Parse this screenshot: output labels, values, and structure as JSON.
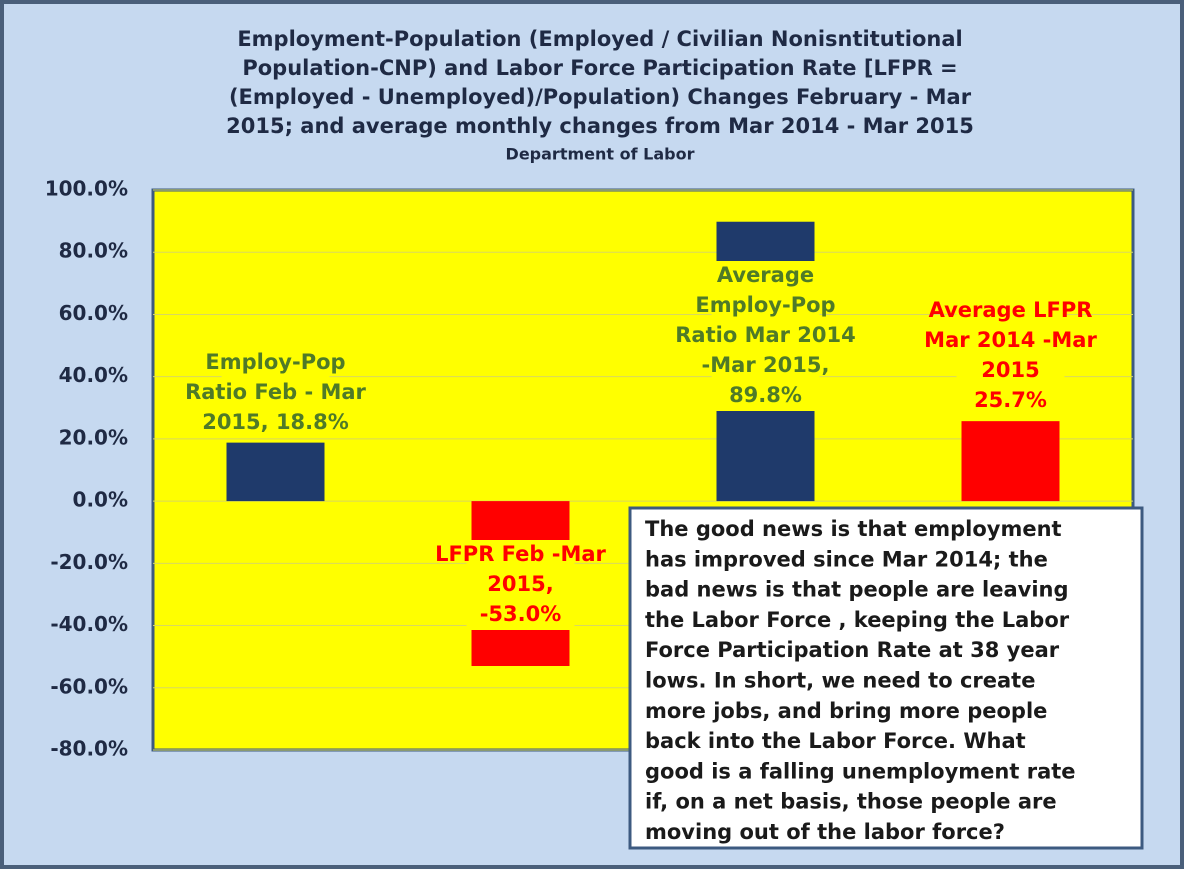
{
  "chart_data": {
    "type": "bar",
    "title": [
      "Employment-Population  (Employed / Civilian Nonisntitutional",
      "Population-CNP) and Labor Force Participation Rate [LFPR =",
      "(Employed - Unemployed)/Population) Changes February - Mar",
      "2015; and average monthly changes from Mar 2014 - Mar 2015"
    ],
    "subtitle": "Department of Labor",
    "categories": [
      null,
      null,
      null,
      null
    ],
    "values": [
      18.8,
      -53.0,
      89.8,
      25.7
    ],
    "colors": [
      "#1f3a6b",
      "#ff0000",
      "#1f3a6b",
      "#ff0000"
    ],
    "value_labels": [
      [
        "Employ-Pop",
        "Ratio Feb - Mar",
        "2015, 18.8%"
      ],
      [
        "LFPR Feb -Mar",
        "2015,",
        "-53.0%"
      ],
      [
        "Average",
        "Employ-Pop",
        "Ratio Mar 2014",
        "-Mar 2015,",
        "89.8%"
      ],
      [
        "Average LFPR",
        "Mar 2014 -Mar",
        "2015",
        "25.7%"
      ]
    ],
    "label_colors": [
      "#4f7a28",
      "#ff0000",
      "#4f7a28",
      "#ff0000"
    ],
    "ylim": [
      -80,
      100
    ],
    "yticks": [
      {
        "value": 100,
        "label": "100.0%"
      },
      {
        "value": 80,
        "label": "80.0%"
      },
      {
        "value": 60,
        "label": "60.0%"
      },
      {
        "value": 40,
        "label": "40.0%"
      },
      {
        "value": 20,
        "label": "20.0%"
      },
      {
        "value": 0,
        "label": "0.0%"
      },
      {
        "value": -20,
        "label": "-20.0%"
      },
      {
        "value": -40,
        "label": "-40.0%"
      },
      {
        "value": -60,
        "label": "-60.0%"
      },
      {
        "value": -80,
        "label": "-80.0%"
      }
    ],
    "grid": true,
    "annotation": [
      "The good news  is that employment",
      "has improved since Mar 2014; the",
      "bad news is that  people are leaving",
      "the  Labor Force , keeping the Labor",
      "Force Participation Rate at 38 year",
      "lows.  In short, we need to create",
      "more jobs, and bring more people",
      "back into the Labor Force.  What",
      "good is a falling unemployment  rate",
      "if, on a net basis, those people are",
      "moving out of the labor force?"
    ]
  }
}
